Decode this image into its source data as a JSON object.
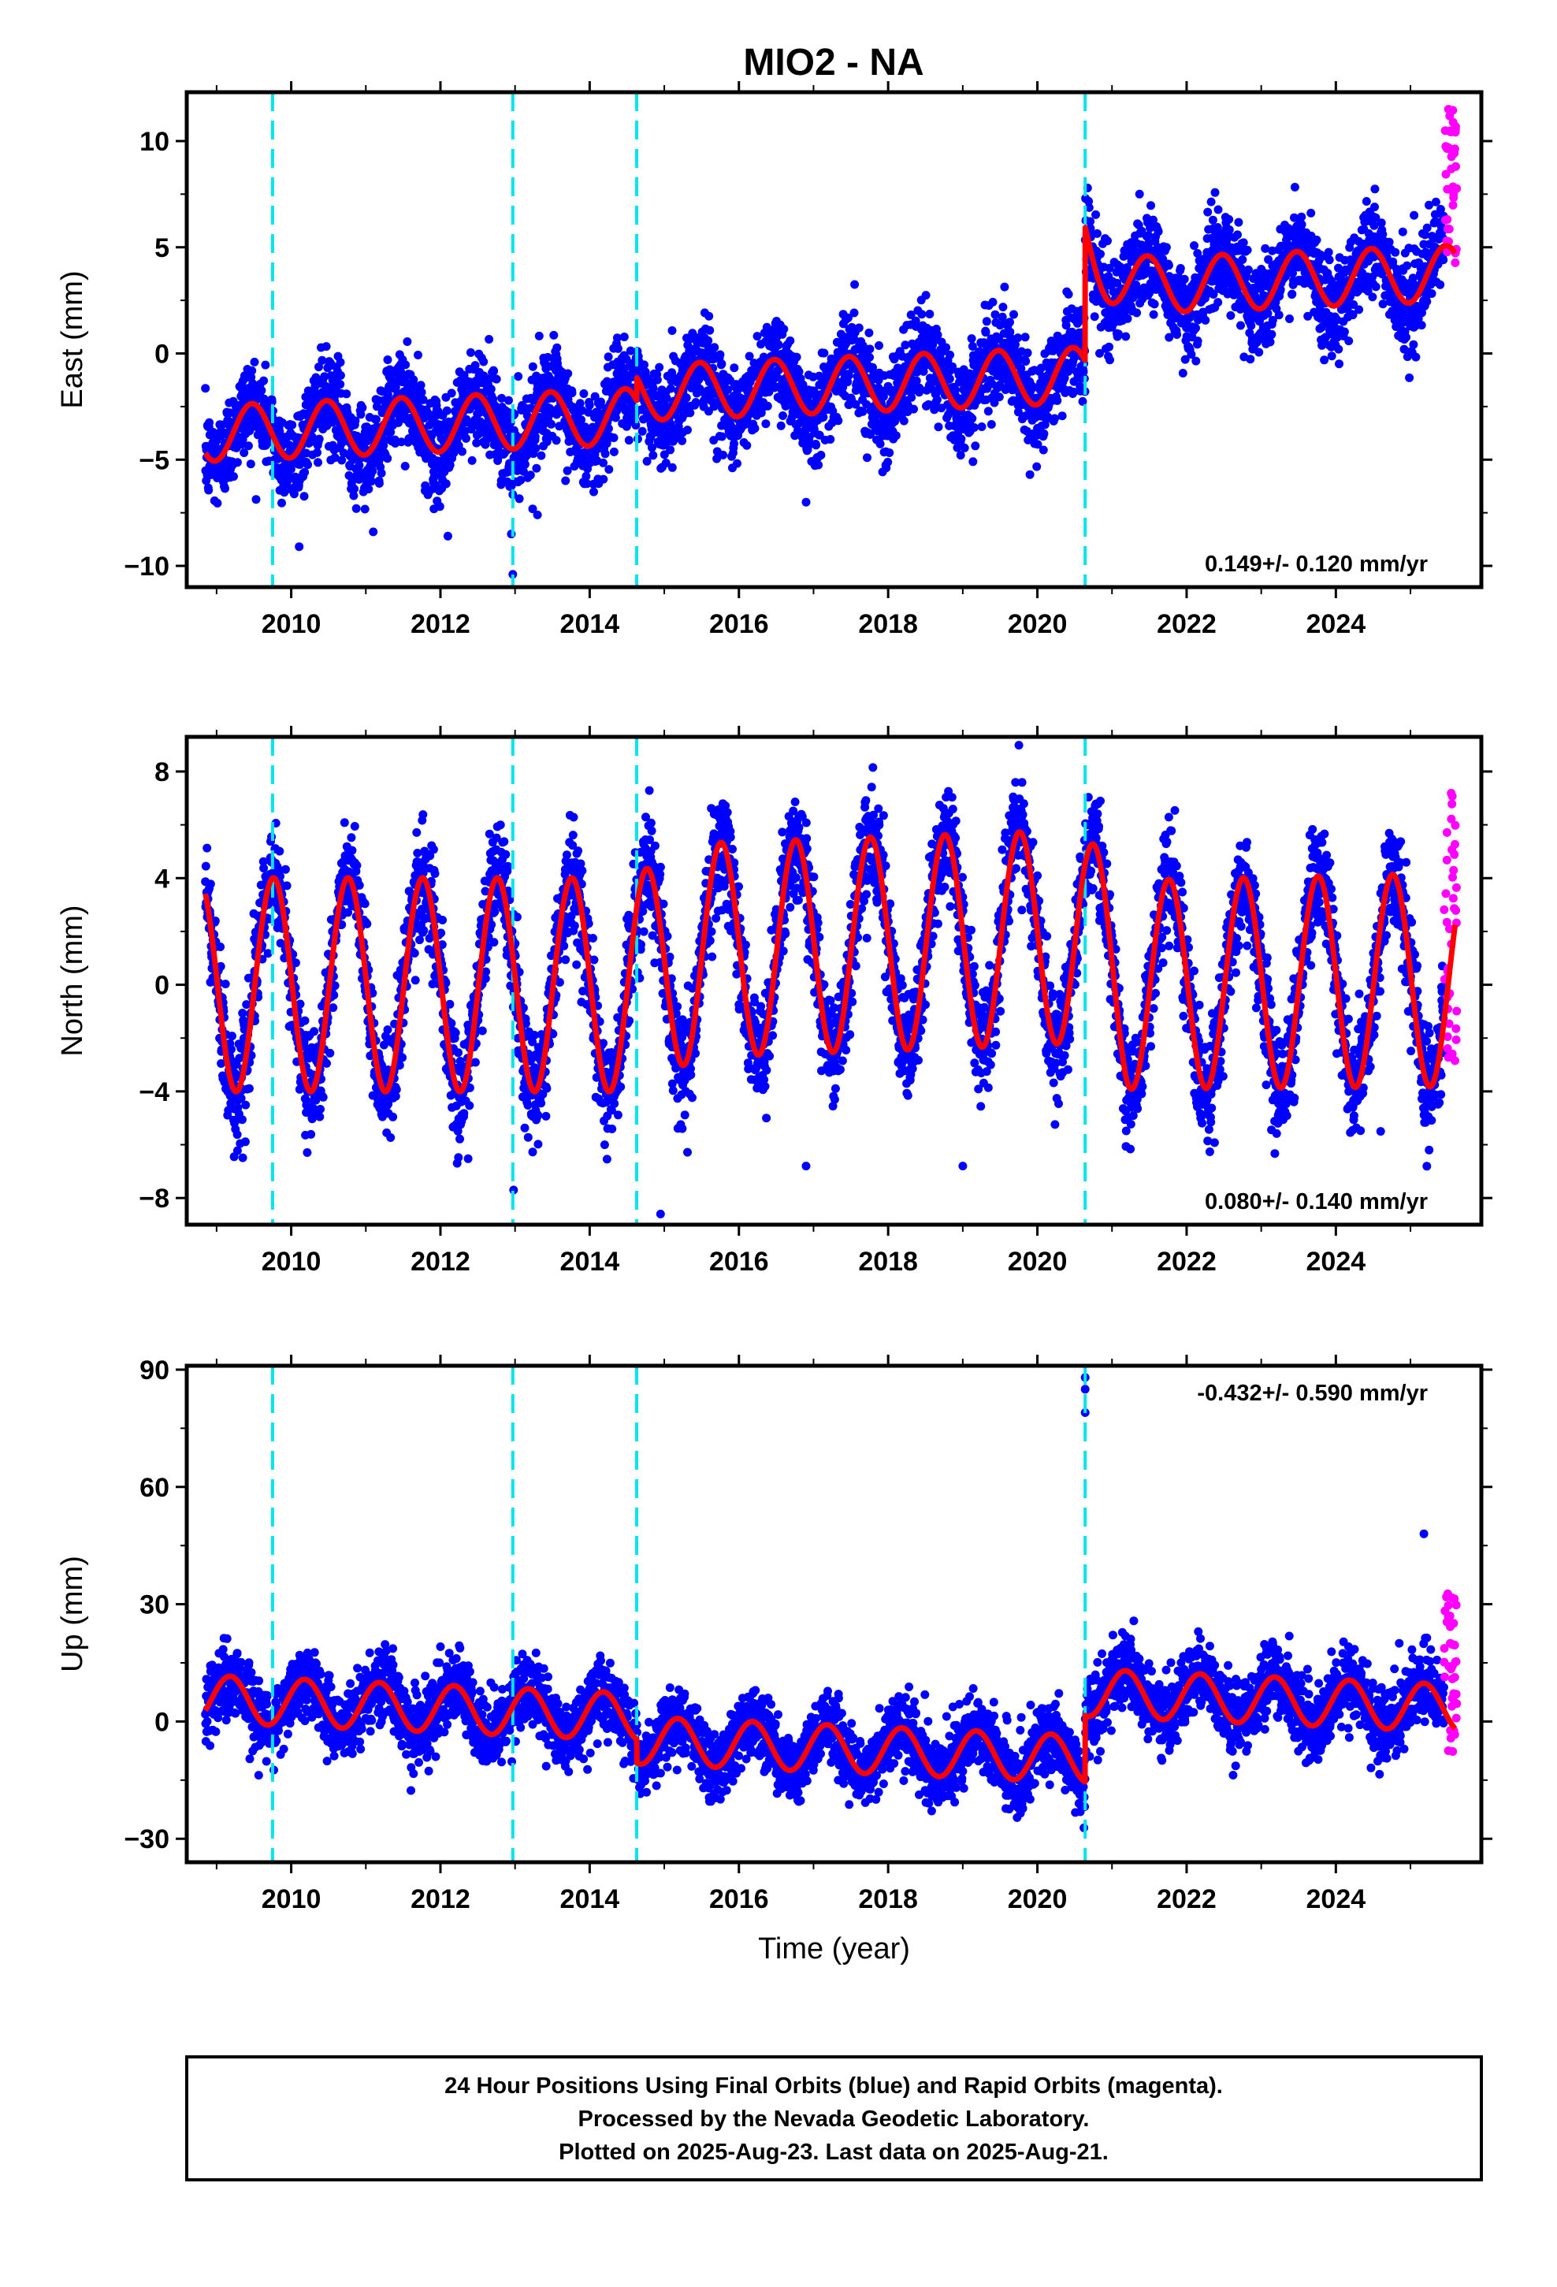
{
  "title": "MIO2 - NA",
  "colors": {
    "final": "#0000ff",
    "rapid": "#ff00ff",
    "model": "#ff0000",
    "event": "#00e5ee",
    "frame": "#000000"
  },
  "chart_data": [
    {
      "type": "scatter",
      "id": "east",
      "ylabel": "East (mm)",
      "xlabel": "",
      "xlim": [
        2008.6,
        2025.95
      ],
      "ylim": [
        -11,
        12.3
      ],
      "yticks": [
        -10,
        -5,
        0,
        5,
        10
      ],
      "xticks": [
        2010,
        2012,
        2014,
        2016,
        2018,
        2020,
        2022,
        2024
      ],
      "grid": false,
      "rate_text": "0.149+/- 0.120 mm/yr",
      "rate_position": "bottom-right",
      "event_lines": [
        2009.75,
        2012.97,
        2014.63,
        2020.64
      ],
      "model": {
        "base": -3.8,
        "trend": 0.14,
        "amp_sin": 0.2,
        "amp_cos": -1.3,
        "steps": [
          [
            2014.63,
            1.1
          ],
          [
            2020.64,
            4.1
          ]
        ],
        "transient": {
          "at": 2020.64,
          "amp": 2.2,
          "tau": 0.25
        }
      },
      "scatter_sigma": 1.1,
      "outliers": [
        [
          2012.97,
          -10.4
        ],
        [
          2012.95,
          -8.5
        ],
        [
          2011.1,
          -8.4
        ],
        [
          2012.1,
          -8.6
        ],
        [
          2013.3,
          -7.6
        ],
        [
          2019.9,
          -5.7
        ],
        [
          2016.9,
          -7.0
        ]
      ],
      "rapid": {
        "x0": 2025.45,
        "x1": 2025.62,
        "ymin": 4.2,
        "ymax": 11.8
      }
    },
    {
      "type": "scatter",
      "id": "north",
      "ylabel": "North (mm)",
      "xlabel": "",
      "xlim": [
        2008.6,
        2025.95
      ],
      "ylim": [
        -9,
        9.3
      ],
      "yticks": [
        -8,
        -4,
        0,
        4,
        8
      ],
      "xticks": [
        2010,
        2012,
        2014,
        2016,
        2018,
        2020,
        2022,
        2024
      ],
      "grid": false,
      "rate_text": "0.080+/- 0.140 mm/yr",
      "rate_position": "bottom-right",
      "event_lines": [
        2009.75,
        2012.97,
        2014.63,
        2020.64
      ],
      "model": {
        "base": 0.0,
        "trend": 0.0,
        "amp_sin": -4.0,
        "amp_cos": 0.3,
        "steps": [],
        "amp_profile": [
          [
            2008.6,
            4.0
          ],
          [
            2013.5,
            4.0
          ],
          [
            2015.5,
            4.0
          ],
          [
            2017.5,
            4.0
          ],
          [
            2020.0,
            4.0
          ],
          [
            2021.0,
            3.9
          ],
          [
            2025.9,
            4.0
          ]
        ],
        "offset_profile": [
          [
            2008.6,
            0.0
          ],
          [
            2014.5,
            0.0
          ],
          [
            2015.5,
            1.3
          ],
          [
            2020.6,
            1.8
          ],
          [
            2021.2,
            0.0
          ],
          [
            2025.9,
            0.2
          ]
        ]
      },
      "scatter_sigma": 1.0,
      "outliers": [
        [
          2014.95,
          -8.6
        ],
        [
          2012.98,
          -7.7
        ],
        [
          2016.9,
          -6.8
        ],
        [
          2019.0,
          -6.8
        ],
        [
          2025.25,
          -6.2
        ],
        [
          2024.6,
          -5.5
        ]
      ],
      "rapid": {
        "x0": 2025.45,
        "x1": 2025.62,
        "ymin": -3.2,
        "ymax": 7.6
      }
    },
    {
      "type": "scatter",
      "id": "up",
      "ylabel": "Up (mm)",
      "xlabel": "Time (year)",
      "xlim": [
        2008.6,
        2025.95
      ],
      "ylim": [
        -36,
        91
      ],
      "yticks": [
        -30,
        0,
        30,
        60,
        90
      ],
      "xticks": [
        2010,
        2012,
        2014,
        2016,
        2018,
        2020,
        2022,
        2024
      ],
      "grid": false,
      "rate_text": "-0.432+/- 0.590 mm/yr",
      "rate_position": "top-right",
      "event_lines": [
        2009.75,
        2012.97,
        2014.63,
        2020.64
      ],
      "model": {
        "base": 6.0,
        "trend": -0.8,
        "amp_sin": 5.5,
        "amp_cos": 2.5,
        "steps": [
          [
            2014.63,
            -6.0
          ],
          [
            2020.64,
            17.0
          ]
        ]
      },
      "scatter_sigma": 4.5,
      "outliers": [
        [
          2020.64,
          88
        ],
        [
          2020.64,
          85
        ],
        [
          2020.64,
          79
        ],
        [
          2025.18,
          48
        ],
        [
          2024.85,
          20
        ]
      ],
      "rapid": {
        "x0": 2025.45,
        "x1": 2025.62,
        "ymin": -8,
        "ymax": 33
      }
    }
  ],
  "footer": {
    "line1": "24 Hour Positions Using Final Orbits (blue) and Rapid Orbits (magenta).",
    "line2": "Processed by the Nevada Geodetic Laboratory.",
    "line3": "Plotted on 2025-Aug-23. Last data on 2025-Aug-21."
  }
}
